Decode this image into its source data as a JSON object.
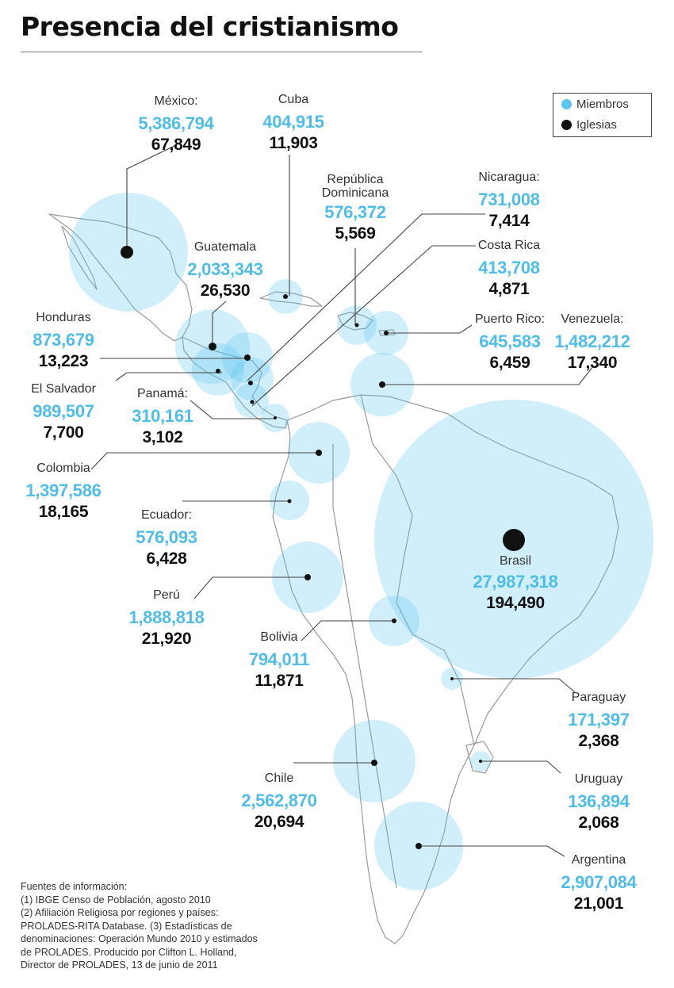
{
  "title": "Presencia del cristianismo",
  "legend": {
    "members": "Miembros",
    "churches": "Iglesias"
  },
  "colors": {
    "members": "#5bc5ef",
    "churches": "#111111",
    "coast": "#999999"
  },
  "countries": [
    {
      "name": "México:",
      "members": "5,386,794",
      "churches": "67,849"
    },
    {
      "name": "Cuba",
      "members": "404,915",
      "churches": "11,903"
    },
    {
      "name": "República Dominicana",
      "members": "576,372",
      "churches": "5,569"
    },
    {
      "name": "Nicaragua:",
      "members": "731,008",
      "churches": "7,414"
    },
    {
      "name": "Costa Rica",
      "members": "413,708",
      "churches": "4,871"
    },
    {
      "name": "Guatemala",
      "members": "2,033,343",
      "churches": "26,530"
    },
    {
      "name": "Honduras",
      "members": "873,679",
      "churches": "13,223"
    },
    {
      "name": "El Salvador",
      "members": "989,507",
      "churches": "7,700"
    },
    {
      "name": "Panamá:",
      "members": "310,161",
      "churches": "3,102"
    },
    {
      "name": "Puerto Rico:",
      "members": "645,583",
      "churches": "6,459"
    },
    {
      "name": "Venezuela:",
      "members": "1,482,212",
      "churches": "17,340"
    },
    {
      "name": "Colombia",
      "members": "1,397,586",
      "churches": "18,165"
    },
    {
      "name": "Ecuador:",
      "members": "576,093",
      "churches": "6,428"
    },
    {
      "name": "Brasil",
      "members": "27,987,318",
      "churches": "194,490"
    },
    {
      "name": "Perú",
      "members": "1,888,818",
      "churches": "21,920"
    },
    {
      "name": "Bolivia",
      "members": "794,011",
      "churches": "11,871"
    },
    {
      "name": "Paraguay",
      "members": "171,397",
      "churches": "2,368"
    },
    {
      "name": "Chile",
      "members": "2,562,870",
      "churches": "20,694"
    },
    {
      "name": "Uruguay",
      "members": "136,894",
      "churches": "2,068"
    },
    {
      "name": "Argentina",
      "members": "2,907,084",
      "churches": "21,001"
    }
  ],
  "sources": [
    "Fuentes de información:",
    "(1) IBGE Censo de Población, agosto 2010",
    "(2) Afiliación Religiosa por regiones y países:",
    "PROLADES-RITA Database. (3) Estadísticas de",
    "denominaciones: Operación Mundo 2010 y estimados",
    "de PROLADES. Producido por Clifton  L. Holland,",
    "Director de PROLADES, 13 de junio de 2011"
  ]
}
